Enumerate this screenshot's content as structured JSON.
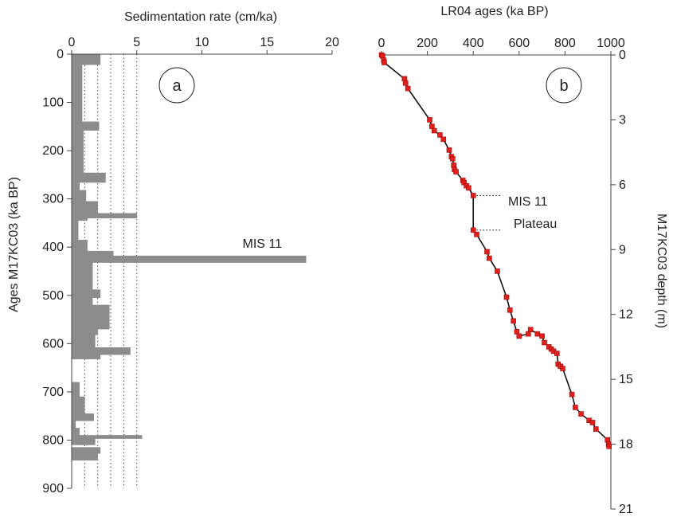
{
  "chart_data": [
    {
      "type": "bar",
      "orientation": "horizontal-step",
      "panel_label": "a",
      "title": "",
      "xlabel": "Sedimentation rate (cm/ka)",
      "ylabel": "Ages M17KC03 (ka BP)",
      "xlim": [
        0,
        20
      ],
      "ylim": [
        0,
        900
      ],
      "y_inverted": true,
      "x_ticks": [
        "0",
        "5",
        "10",
        "15",
        "20"
      ],
      "y_ticks": [
        "0",
        "100",
        "200",
        "300",
        "400",
        "500",
        "600",
        "700",
        "800",
        "900"
      ],
      "reference_lines_x": [
        1,
        2,
        3,
        4,
        5
      ],
      "annotation": "MIS 11",
      "annotation_age": 405,
      "intervals": [
        {
          "y0": 0,
          "y1": 22,
          "x": 2.2
        },
        {
          "y0": 22,
          "y1": 140,
          "x": 0.8
        },
        {
          "y0": 140,
          "y1": 158,
          "x": 2.1
        },
        {
          "y0": 158,
          "y1": 246,
          "x": 0.9
        },
        {
          "y0": 246,
          "y1": 266,
          "x": 2.6
        },
        {
          "y0": 266,
          "y1": 282,
          "x": 0.6
        },
        {
          "y0": 282,
          "y1": 305,
          "x": 1.1
        },
        {
          "y0": 305,
          "y1": 330,
          "x": 2.0
        },
        {
          "y0": 330,
          "y1": 340,
          "x": 5.0
        },
        {
          "y0": 340,
          "y1": 345,
          "x": 1.2
        },
        {
          "y0": 345,
          "y1": 385,
          "x": 0.5
        },
        {
          "y0": 385,
          "y1": 408,
          "x": 1.2
        },
        {
          "y0": 408,
          "y1": 418,
          "x": 3.2
        },
        {
          "y0": 418,
          "y1": 432,
          "x": 18.0
        },
        {
          "y0": 432,
          "y1": 488,
          "x": 1.6
        },
        {
          "y0": 488,
          "y1": 505,
          "x": 2.2
        },
        {
          "y0": 505,
          "y1": 520,
          "x": 1.6
        },
        {
          "y0": 520,
          "y1": 570,
          "x": 2.9
        },
        {
          "y0": 570,
          "y1": 582,
          "x": 2.0
        },
        {
          "y0": 582,
          "y1": 608,
          "x": 1.8
        },
        {
          "y0": 608,
          "y1": 623,
          "x": 4.5
        },
        {
          "y0": 623,
          "y1": 632,
          "x": 2.2
        },
        {
          "y0": 680,
          "y1": 710,
          "x": 0.6
        },
        {
          "y0": 710,
          "y1": 745,
          "x": 1.0
        },
        {
          "y0": 745,
          "y1": 760,
          "x": 1.7
        },
        {
          "y0": 760,
          "y1": 775,
          "x": 0.3
        },
        {
          "y0": 775,
          "y1": 790,
          "x": 0.6
        },
        {
          "y0": 790,
          "y1": 797,
          "x": 5.4
        },
        {
          "y0": 797,
          "y1": 810,
          "x": 1.8
        },
        {
          "y0": 815,
          "y1": 828,
          "x": 2.2
        },
        {
          "y0": 828,
          "y1": 842,
          "x": 2.0
        }
      ]
    },
    {
      "type": "line",
      "panel_label": "b",
      "title": "",
      "xlabel": "LR04 ages (ka BP)",
      "ylabel": "M17KC03 depth (m)",
      "xlim": [
        0,
        1000
      ],
      "ylim": [
        0,
        21
      ],
      "y_inverted": true,
      "x_ticks": [
        "0",
        "200",
        "400",
        "600",
        "800",
        "1000"
      ],
      "y_ticks": [
        "0",
        "3",
        "6",
        "9",
        "12",
        "15",
        "18",
        "21"
      ],
      "annotation_lines": [
        "MIS 11",
        "Plateau"
      ],
      "series": [
        {
          "marker_color": "#e0201b",
          "line_color": "#111111",
          "points": [
            {
              "x": 0,
              "y": 0.0
            },
            {
              "x": 5,
              "y": 0.05
            },
            {
              "x": 10,
              "y": 0.25
            },
            {
              "x": 12,
              "y": 0.35
            },
            {
              "x": 100,
              "y": 1.1
            },
            {
              "x": 105,
              "y": 1.3
            },
            {
              "x": 115,
              "y": 1.55
            },
            {
              "x": 210,
              "y": 3.0
            },
            {
              "x": 220,
              "y": 3.3
            },
            {
              "x": 230,
              "y": 3.5
            },
            {
              "x": 255,
              "y": 3.7
            },
            {
              "x": 270,
              "y": 3.9
            },
            {
              "x": 295,
              "y": 4.4
            },
            {
              "x": 305,
              "y": 4.7
            },
            {
              "x": 310,
              "y": 4.8
            },
            {
              "x": 315,
              "y": 5.1
            },
            {
              "x": 318,
              "y": 5.3
            },
            {
              "x": 325,
              "y": 5.4
            },
            {
              "x": 355,
              "y": 5.8
            },
            {
              "x": 360,
              "y": 5.9
            },
            {
              "x": 370,
              "y": 6.05
            },
            {
              "x": 380,
              "y": 6.15
            },
            {
              "x": 400,
              "y": 6.5
            },
            {
              "x": 400,
              "y": 8.1
            },
            {
              "x": 415,
              "y": 8.3
            },
            {
              "x": 460,
              "y": 9.1
            },
            {
              "x": 470,
              "y": 9.4
            },
            {
              "x": 505,
              "y": 10.0
            },
            {
              "x": 545,
              "y": 11.2
            },
            {
              "x": 560,
              "y": 11.8
            },
            {
              "x": 575,
              "y": 12.3
            },
            {
              "x": 590,
              "y": 12.8
            },
            {
              "x": 600,
              "y": 13.0
            },
            {
              "x": 640,
              "y": 12.9
            },
            {
              "x": 650,
              "y": 12.7
            },
            {
              "x": 680,
              "y": 12.9
            },
            {
              "x": 700,
              "y": 13.0
            },
            {
              "x": 710,
              "y": 13.3
            },
            {
              "x": 730,
              "y": 13.5
            },
            {
              "x": 740,
              "y": 13.6
            },
            {
              "x": 750,
              "y": 13.7
            },
            {
              "x": 765,
              "y": 13.8
            },
            {
              "x": 770,
              "y": 14.3
            },
            {
              "x": 780,
              "y": 14.4
            },
            {
              "x": 790,
              "y": 14.5
            },
            {
              "x": 830,
              "y": 15.7
            },
            {
              "x": 845,
              "y": 16.3
            },
            {
              "x": 870,
              "y": 16.6
            },
            {
              "x": 905,
              "y": 16.9
            },
            {
              "x": 920,
              "y": 17.0
            },
            {
              "x": 935,
              "y": 17.3
            },
            {
              "x": 985,
              "y": 17.8
            },
            {
              "x": 990,
              "y": 18.0
            },
            {
              "x": 992,
              "y": 18.1
            }
          ]
        }
      ]
    }
  ]
}
